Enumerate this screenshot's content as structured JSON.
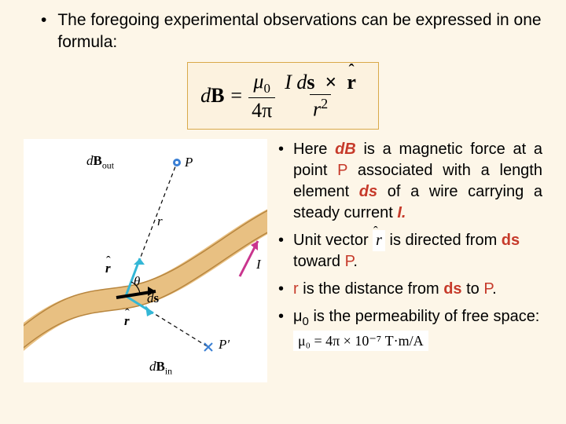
{
  "top_bullet": "The foregoing experimental observations can be expressed in one formula:",
  "formula": {
    "lhs_d": "d",
    "lhs_B": "B",
    "eq": "=",
    "mu0_num": "μ",
    "mu0_sub": "0",
    "fourpi": "4π",
    "Ids_I": "I",
    "Ids_d": "d",
    "Ids_s": "s",
    "cross": "×",
    "rhat": "r",
    "r2_r": "r",
    "r2_2": "2"
  },
  "bullets": [
    {
      "parts": [
        {
          "t": "Here "
        },
        {
          "t": "dB",
          "cls": "em-red"
        },
        {
          "t": " is a magnetic force at  a point "
        },
        {
          "t": "P",
          "cls": "em-red-plain"
        },
        {
          "t": " associated with a  length  element  "
        },
        {
          "t": "ds",
          "cls": "em-red"
        },
        {
          "t": " of  a wire  carrying  a  steady current  "
        },
        {
          "t": "I.",
          "cls": "em-red it"
        }
      ]
    },
    {
      "parts": [
        {
          "t": "Unit vector  "
        },
        {
          "t": "RHAT",
          "cls": "rhat"
        },
        {
          "t": "  is directed from "
        },
        {
          "t": "ds",
          "cls": "em-red-n"
        },
        {
          "t": " toward "
        },
        {
          "t": "P",
          "cls": "em-red-plain"
        },
        {
          "t": "."
        }
      ]
    },
    {
      "parts": [
        {
          "t": " r",
          "cls": "em-red-plain"
        },
        {
          "t": "  is  the distance from "
        },
        {
          "t": "ds",
          "cls": "em-red-n"
        },
        {
          "t": " to "
        },
        {
          "t": "P",
          "cls": "em-red-plain"
        },
        {
          "t": "."
        }
      ]
    },
    {
      "parts": [
        {
          "t": " μ"
        },
        {
          "t": "0",
          "cls": "sub"
        },
        {
          "t": " is the permeability of free space:  "
        }
      ],
      "tail_formula": "μ₀ = 4π × 10⁻⁷ T·m/A"
    }
  ],
  "diagram": {
    "labels": {
      "dBout": "d",
      "dBout_B": "B",
      "dBout_sub": "out",
      "P": "P",
      "r": "r",
      "rhat_upper": "r",
      "theta": "θ",
      "ds_d": "d",
      "ds_s": "s",
      "rhat_lower": "r",
      "Pprime": "P′",
      "dBin": "d",
      "dBin_B": "B",
      "dBin_sub": "in",
      "I": "I"
    },
    "colors": {
      "wire_fill": "#e8c082",
      "wire_stroke": "#b8863f",
      "dash": "#000000",
      "vec_cyan": "#34b7d6",
      "vec_magenta": "#c9358e",
      "dot_blue": "#3a7fd4",
      "cross_blue": "#3a7fd4"
    }
  }
}
